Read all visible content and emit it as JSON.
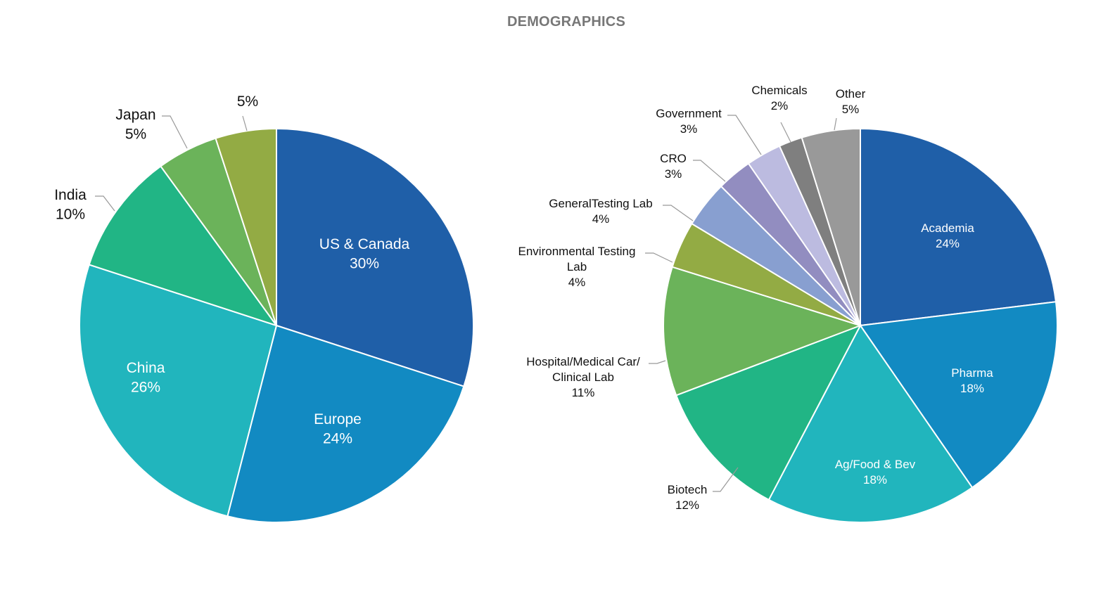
{
  "title": "DEMOGRAPHICS",
  "chart_data": [
    {
      "type": "pie",
      "title": "",
      "slices": [
        {
          "label": "US & Canada",
          "value": 30,
          "value_label": "30%",
          "color": "#1f5fa8"
        },
        {
          "label": "Europe",
          "value": 24,
          "value_label": "24%",
          "color": "#128ac2"
        },
        {
          "label": "China",
          "value": 26,
          "value_label": "26%",
          "color": "#21b5bd"
        },
        {
          "label": "India",
          "value": 10,
          "value_label": "10%",
          "color": "#21b585"
        },
        {
          "label": "Japan",
          "value": 5,
          "value_label": "5%",
          "color": "#6bb35a"
        },
        {
          "label": "",
          "value": 5,
          "value_label": "5%",
          "color": "#93ab44"
        }
      ]
    },
    {
      "type": "pie",
      "title": "",
      "slices": [
        {
          "label": "Academia",
          "value": 24,
          "value_label": "24%",
          "color": "#1f5fa8"
        },
        {
          "label": "Pharma",
          "value": 18,
          "value_label": "18%",
          "color": "#128ac2"
        },
        {
          "label": "Ag/Food & Bev",
          "value": 18,
          "value_label": "18%",
          "color": "#21b5bd"
        },
        {
          "label": "Biotech",
          "value": 12,
          "value_label": "12%",
          "color": "#21b585"
        },
        {
          "label": "Hospital/Medical Car/ Clinical Lab",
          "value": 11,
          "value_label": "11%",
          "color": "#6bb35a"
        },
        {
          "label": "Environmental Testing Lab",
          "value": 4,
          "value_label": "4%",
          "color": "#93ab44"
        },
        {
          "label": "GeneralTesting Lab",
          "value": 4,
          "value_label": "4%",
          "color": "#889fd0"
        },
        {
          "label": "CRO",
          "value": 3,
          "value_label": "3%",
          "color": "#928dc0"
        },
        {
          "label": "Government",
          "value": 3,
          "value_label": "3%",
          "color": "#bcbbe0"
        },
        {
          "label": "Chemicals",
          "value": 2,
          "value_label": "2%",
          "color": "#7f7f7f"
        },
        {
          "label": "Other",
          "value": 5,
          "value_label": "5%",
          "color": "#999999"
        }
      ]
    }
  ]
}
